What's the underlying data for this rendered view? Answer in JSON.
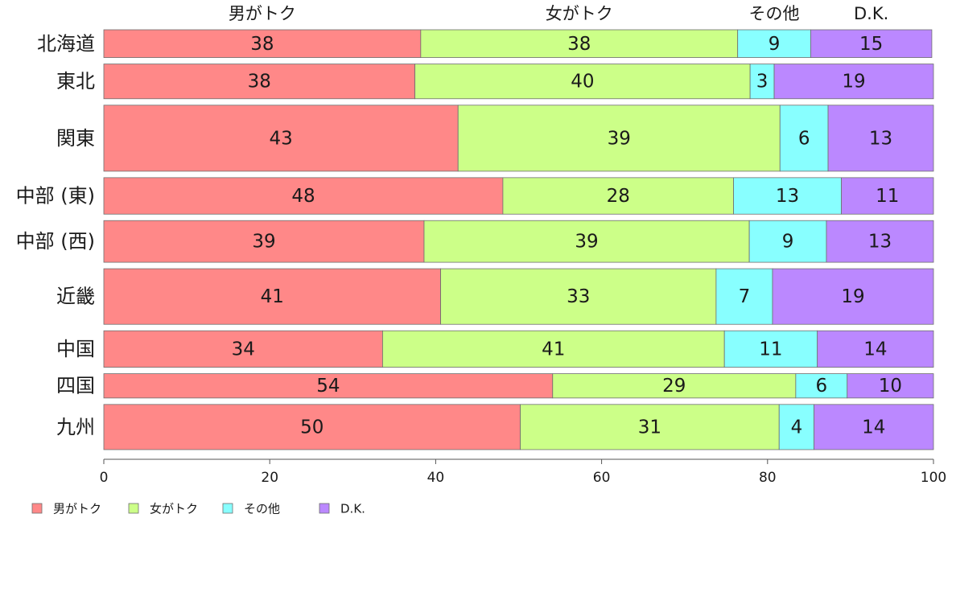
{
  "chart_data": {
    "type": "bar",
    "orientation": "horizontal",
    "stacked": true,
    "variable_width": true,
    "title": "",
    "xlabel": "",
    "ylabel": "",
    "xlim": [
      0,
      100
    ],
    "xticks": [
      "0",
      "20",
      "40",
      "60",
      "80",
      "100"
    ],
    "grid": false,
    "legend_position": "bottom-left",
    "categories": [
      "北海道",
      "東北",
      "関東",
      "中部 (東)",
      "中部 (西)",
      "近畿",
      "中国",
      "四国",
      "九州"
    ],
    "relative_widths": [
      80,
      100,
      190,
      105,
      120,
      160,
      105,
      70,
      130
    ],
    "series": [
      {
        "name": "男がトク",
        "color": "#ff8888",
        "values": [
          38.2,
          37.5,
          42.7,
          48.1,
          38.6,
          40.6,
          33.6,
          54.1,
          50.2
        ]
      },
      {
        "name": "女がトク",
        "color": "#ccff88",
        "values": [
          38.2,
          40.4,
          38.8,
          27.8,
          39.2,
          33.2,
          41.2,
          29.3,
          31.2
        ]
      },
      {
        "name": "その他",
        "color": "#88ffff",
        "values": [
          8.8,
          2.9,
          5.8,
          13.0,
          9.3,
          6.8,
          11.2,
          6.2,
          4.2
        ]
      },
      {
        "name": "D.K.",
        "color": "#bb88ff",
        "values": [
          14.6,
          19.2,
          12.7,
          11.1,
          12.9,
          19.4,
          14.0,
          10.4,
          14.4
        ]
      }
    ],
    "value_labels": [
      [
        "38",
        "38",
        "9",
        "15"
      ],
      [
        "38",
        "40",
        "3",
        "19"
      ],
      [
        "43",
        "39",
        "6",
        "13"
      ],
      [
        "48",
        "28",
        "13",
        "11"
      ],
      [
        "39",
        "39",
        "9",
        "13"
      ],
      [
        "41",
        "33",
        "7",
        "19"
      ],
      [
        "34",
        "41",
        "11",
        "14"
      ],
      [
        "54",
        "29",
        "6",
        "10"
      ],
      [
        "50",
        "31",
        "4",
        "14"
      ]
    ]
  }
}
